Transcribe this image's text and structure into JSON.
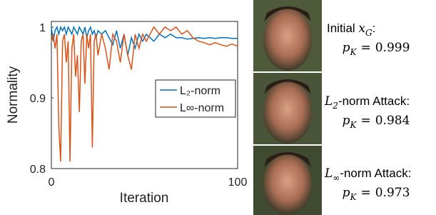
{
  "chart_data": {
    "type": "line",
    "xlabel": "Iteration",
    "ylabel": "Normality",
    "x": [
      0,
      1,
      2,
      3,
      4,
      5,
      6,
      7,
      8,
      9,
      10,
      11,
      12,
      13,
      14,
      15,
      16,
      17,
      18,
      19,
      20,
      21,
      22,
      23,
      24,
      25,
      27,
      29,
      31,
      33,
      35,
      37,
      39,
      41,
      43,
      45,
      47,
      49,
      51,
      53,
      55,
      58,
      61,
      64,
      67,
      70,
      73,
      76,
      79,
      82,
      85,
      88,
      91,
      94,
      97,
      100
    ],
    "series": [
      {
        "name": "L₂-norm",
        "color": "#0072bd",
        "values": [
          1.0,
          0.98,
          0.995,
          1.0,
          0.99,
          1.0,
          0.995,
          1.0,
          0.99,
          1.0,
          0.995,
          0.99,
          1.0,
          0.995,
          0.99,
          1.0,
          0.995,
          0.99,
          1.0,
          0.985,
          0.995,
          1.0,
          0.99,
          0.995,
          0.985,
          0.995,
          0.99,
          0.995,
          0.985,
          0.975,
          0.995,
          0.97,
          0.99,
          0.96,
          0.985,
          0.97,
          0.99,
          0.98,
          0.99,
          0.985,
          0.98,
          0.99,
          0.985,
          0.99,
          0.985,
          0.985,
          0.983,
          0.984,
          0.985,
          0.984,
          0.985,
          0.984,
          0.985,
          0.985,
          0.984,
          0.984
        ]
      },
      {
        "name": "L∞-norm",
        "color": "#d95319",
        "values": [
          0.98,
          0.99,
          0.97,
          0.99,
          0.86,
          0.81,
          0.98,
          0.99,
          0.95,
          0.98,
          0.81,
          0.97,
          0.99,
          0.93,
          0.96,
          0.88,
          0.98,
          0.99,
          0.92,
          0.99,
          0.97,
          0.99,
          0.83,
          0.98,
          0.99,
          0.96,
          0.99,
          0.97,
          0.94,
          0.99,
          0.98,
          0.95,
          0.99,
          0.96,
          0.94,
          0.99,
          0.97,
          0.99,
          0.98,
          0.99,
          1.0,
          0.99,
          1.0,
          0.995,
          1.0,
          0.99,
          0.995,
          0.985,
          0.98,
          0.978,
          0.975,
          0.978,
          0.975,
          0.973,
          0.976,
          0.973
        ]
      }
    ],
    "xlim": [
      0,
      100
    ],
    "xticks": [
      0,
      100
    ],
    "ylim": [
      0.8,
      1.008
    ],
    "yticks": [
      0.8,
      0.9,
      1
    ],
    "legend": "right"
  },
  "panels": [
    {
      "pre": "Initial ",
      "var": "x",
      "sub": "G",
      "post": ":",
      "score_var": "p",
      "score_sub": "K",
      "op": "=",
      "score": 0.999
    },
    {
      "pre": "",
      "var": "L",
      "sub": "2",
      "post": "-norm Attack:",
      "score_var": "p",
      "score_sub": "K",
      "op": "=",
      "score": 0.984
    },
    {
      "pre": "",
      "var": "L",
      "sub": "∞",
      "post": "-norm Attack:",
      "score_var": "p",
      "score_sub": "K",
      "op": "=",
      "score": 0.973
    }
  ]
}
